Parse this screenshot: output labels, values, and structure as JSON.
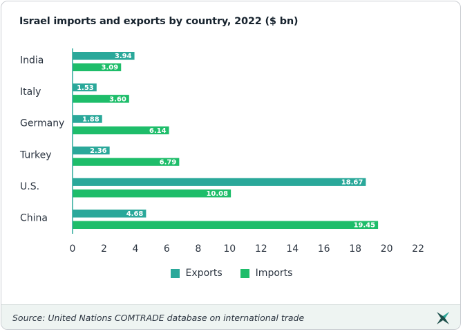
{
  "chart_data": {
    "type": "bar",
    "orientation": "horizontal",
    "title": "Israel imports and exports by country, 2022 ($ bn)",
    "categories": [
      "India",
      "Italy",
      "Germany",
      "Turkey",
      "U.S.",
      "China"
    ],
    "series": [
      {
        "name": "Exports",
        "color": "#2aa89a",
        "values": [
          3.94,
          1.53,
          1.88,
          2.36,
          18.67,
          4.68
        ]
      },
      {
        "name": "Imports",
        "color": "#1ebd6a",
        "values": [
          3.09,
          3.6,
          6.14,
          6.79,
          10.08,
          19.45
        ]
      }
    ],
    "value_labels": {
      "Exports": [
        "3.94",
        "1.53",
        "1.88",
        "2.36",
        "18.67",
        "4.68"
      ],
      "Imports": [
        "3.09",
        "3.60",
        "6.14",
        "6.79",
        "10.08",
        "19.45"
      ]
    },
    "xlim": [
      0,
      22
    ],
    "xticks": [
      "0",
      "2",
      "4",
      "6",
      "8",
      "10",
      "12",
      "14",
      "16",
      "18",
      "20",
      "22"
    ],
    "grid": false,
    "legend_position": "bottom-center"
  },
  "source_text": "Source: United Nations COMTRADE database on international trade",
  "logo_icon": "brand-cross-logo-icon",
  "colors": {
    "axis": "#2aa89a",
    "text": "#2b3440",
    "footer_bg": "#eef4f2"
  }
}
